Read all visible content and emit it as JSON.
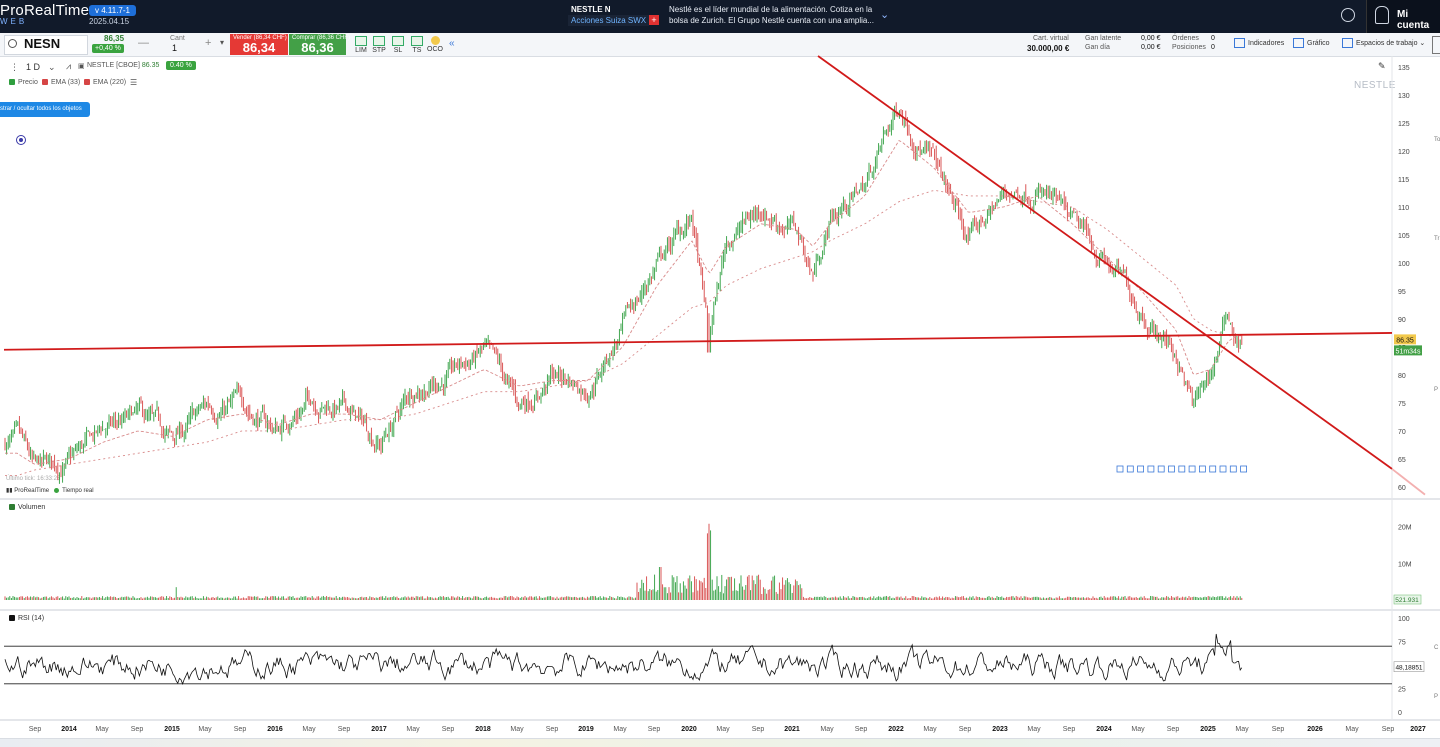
{
  "header": {
    "brand": "ProRealTime",
    "brand_sub": "WEB",
    "version": "v 4.11.7-1",
    "date": "2025.04.15",
    "ticker_name": "NESTLE N",
    "market": "Acciones Suiza SWX",
    "description": "Nestlé es el líder mundial de la alimentación. Cotiza en la bolsa de Zurich. El Grupo Nestlé cuenta con una amplia...",
    "account": "Mi cuenta"
  },
  "toolbar": {
    "symbol": "NESN",
    "price": "86,35",
    "change": "+0,40 %",
    "qty_label": "Cant",
    "qty_value": "1",
    "sell_label": "Vender (86,34 CHF)",
    "sell_price": "86,34",
    "buy_label": "Comprar (86,36 CHF)",
    "buy_price": "86,36",
    "order_types": [
      "LIM",
      "STP",
      "SL",
      "TS",
      "OCO"
    ],
    "cart_label": "Cart. virtual",
    "cart_value": "30.000,00 €",
    "gan_latente": "Gan latente",
    "gan_latente_v": "0,00 €",
    "gan_dia": "Gan día",
    "gan_dia_v": "0,00 €",
    "ordenes": "Órdenes",
    "ordenes_v": "0",
    "posiciones": "Posiciones",
    "posiciones_v": "0",
    "indicadores": "Indicadores",
    "grafico": "Gráfico",
    "espacios": "Espacios de trabajo"
  },
  "chart_header": {
    "timeframe": "1 D",
    "instrument": "NESTLE [CBOE]",
    "last": "86.35",
    "pct": "0.40 %",
    "legend": [
      "Precio",
      "EMA (33)",
      "EMA (220)"
    ],
    "tooltip": "strar / ocultar todos los objetos",
    "watermark": "NESTLE",
    "last_tick": "Último tick: 16:33:25",
    "source": "ProRealTime",
    "realtime": "Tiempo real"
  },
  "panels": {
    "volume_label": "Volumen",
    "volume_value": "521.931",
    "rsi_label": "RSI (14)",
    "rsi_value": "48,18851",
    "price_tag": "86.35",
    "countdown": "51m34s"
  },
  "colors": {
    "up": "#2e9e3e",
    "down": "#d64545",
    "trendline": "#d11a1a",
    "ema": "#d88a8a",
    "accent": "#1e88e5"
  },
  "chart_data": [
    {
      "type": "line",
      "series": [
        {
          "name": "Precio",
          "x": [
            "2013-07",
            "2013-09",
            "2014-01",
            "2014-05",
            "2014-09",
            "2015-01",
            "2015-05",
            "2015-09",
            "2016-01",
            "2016-05",
            "2016-09",
            "2017-01",
            "2017-05",
            "2017-09",
            "2018-01",
            "2018-05",
            "2018-09",
            "2019-01",
            "2019-05",
            "2019-09",
            "2020-01",
            "2020-03",
            "2020-05",
            "2020-09",
            "2021-01",
            "2021-03",
            "2021-05",
            "2021-09",
            "2022-01",
            "2022-05",
            "2022-09",
            "2023-01",
            "2023-05",
            "2023-09",
            "2024-01",
            "2024-05",
            "2024-09",
            "2024-11",
            "2025-01",
            "2025-03",
            "2025-04"
          ],
          "values": [
            68,
            62,
            64,
            70,
            72,
            68,
            74,
            75,
            70,
            76,
            74,
            68,
            78,
            80,
            84,
            74,
            80,
            78,
            88,
            100,
            108,
            86,
            104,
            110,
            106,
            98,
            108,
            114,
            128,
            118,
            104,
            112,
            114,
            106,
            100,
            92,
            84,
            74,
            80,
            91,
            86.35
          ]
        }
      ],
      "ema_short": [
        66,
        64,
        65,
        68,
        70,
        69,
        72,
        73,
        71,
        73,
        73,
        72,
        75,
        78,
        81,
        78,
        79,
        79,
        85,
        96,
        104,
        98,
        103,
        107,
        106,
        103,
        107,
        112,
        122,
        117,
        109,
        110,
        112,
        107,
        101,
        95,
        88,
        80,
        81,
        86,
        87
      ],
      "ema_long": [
        62,
        63,
        64,
        65,
        66,
        67,
        68,
        70,
        70,
        71,
        72,
        72,
        73,
        75,
        77,
        77,
        78,
        79,
        82,
        87,
        92,
        93,
        96,
        99,
        101,
        102,
        104,
        107,
        111,
        113,
        112,
        112,
        111,
        110,
        106,
        101,
        96,
        90,
        88,
        87,
        87
      ],
      "yaxis": [
        60,
        65,
        70,
        75,
        80,
        85,
        90,
        95,
        100,
        105,
        110,
        115,
        120,
        125,
        130,
        135
      ],
      "ylim": [
        58,
        137
      ],
      "xticks": [
        "Sep",
        "2014",
        "May",
        "Sep",
        "2015",
        "May",
        "Sep",
        "2016",
        "May",
        "Sep",
        "2017",
        "May",
        "Sep",
        "2018",
        "May",
        "Sep",
        "2019",
        "May",
        "Sep",
        "2020",
        "May",
        "Sep",
        "2021",
        "May",
        "Sep",
        "2022",
        "May",
        "Sep",
        "2023",
        "May",
        "Sep",
        "2024",
        "May",
        "Sep",
        "2025",
        "May",
        "Sep",
        "2026",
        "May",
        "Sep",
        "2027"
      ]
    },
    {
      "type": "bar",
      "name": "Volumen",
      "yaxis": [
        "20M",
        "10M"
      ],
      "ylim": [
        0,
        24000000
      ]
    },
    {
      "type": "line",
      "name": "RSI (14)",
      "yaxis": [
        100,
        75,
        50,
        25,
        0
      ],
      "levels": [
        70,
        30
      ],
      "ylim": [
        0,
        100
      ]
    }
  ]
}
